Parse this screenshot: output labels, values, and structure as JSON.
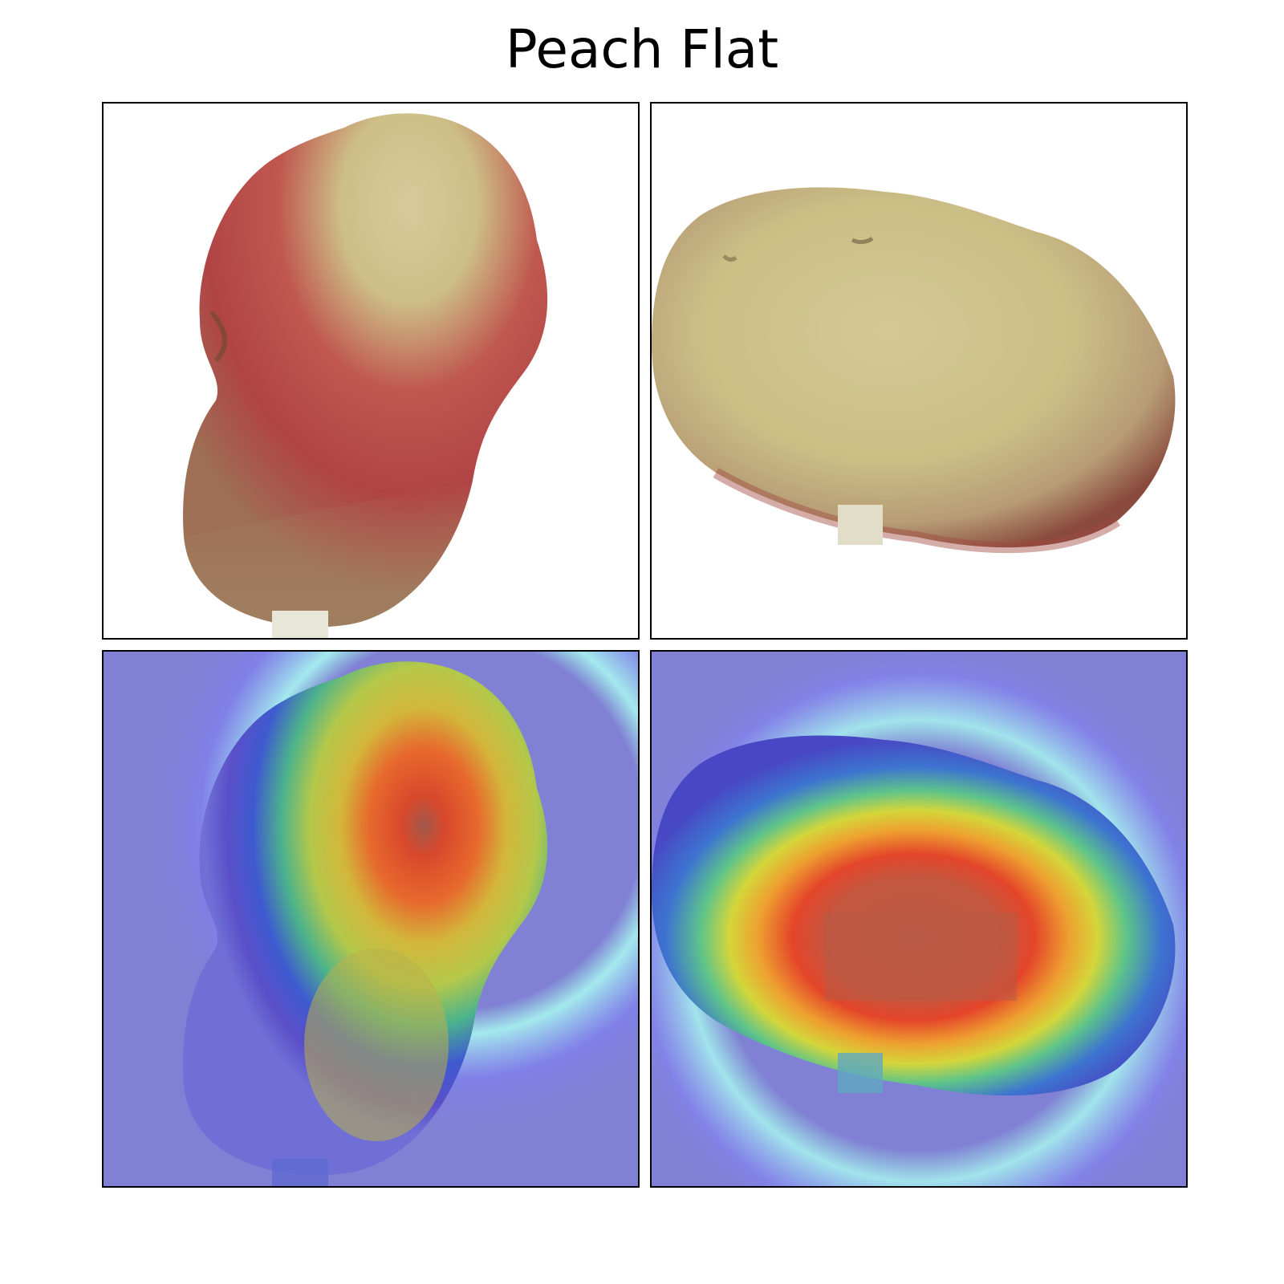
{
  "figure": {
    "title": "Peach Flat"
  },
  "panels": [
    {
      "kind": "photo",
      "subject": "peach-flat-view-1"
    },
    {
      "kind": "photo",
      "subject": "peach-flat-view-2"
    },
    {
      "kind": "heatmap-overlay",
      "subject": "peach-flat-view-1"
    },
    {
      "kind": "heatmap-overlay",
      "subject": "peach-flat-view-2"
    }
  ],
  "colors": {
    "background_overlay": "#8080d4",
    "heat_low": "#6e6ef0",
    "heat_cyan": "#9ff5e8",
    "heat_mid": "#b9d23c",
    "heat_high": "#e8452c",
    "heat_core": "#b45a46",
    "peach_skin": "#cdbf87",
    "peach_red": "#b4474a"
  }
}
